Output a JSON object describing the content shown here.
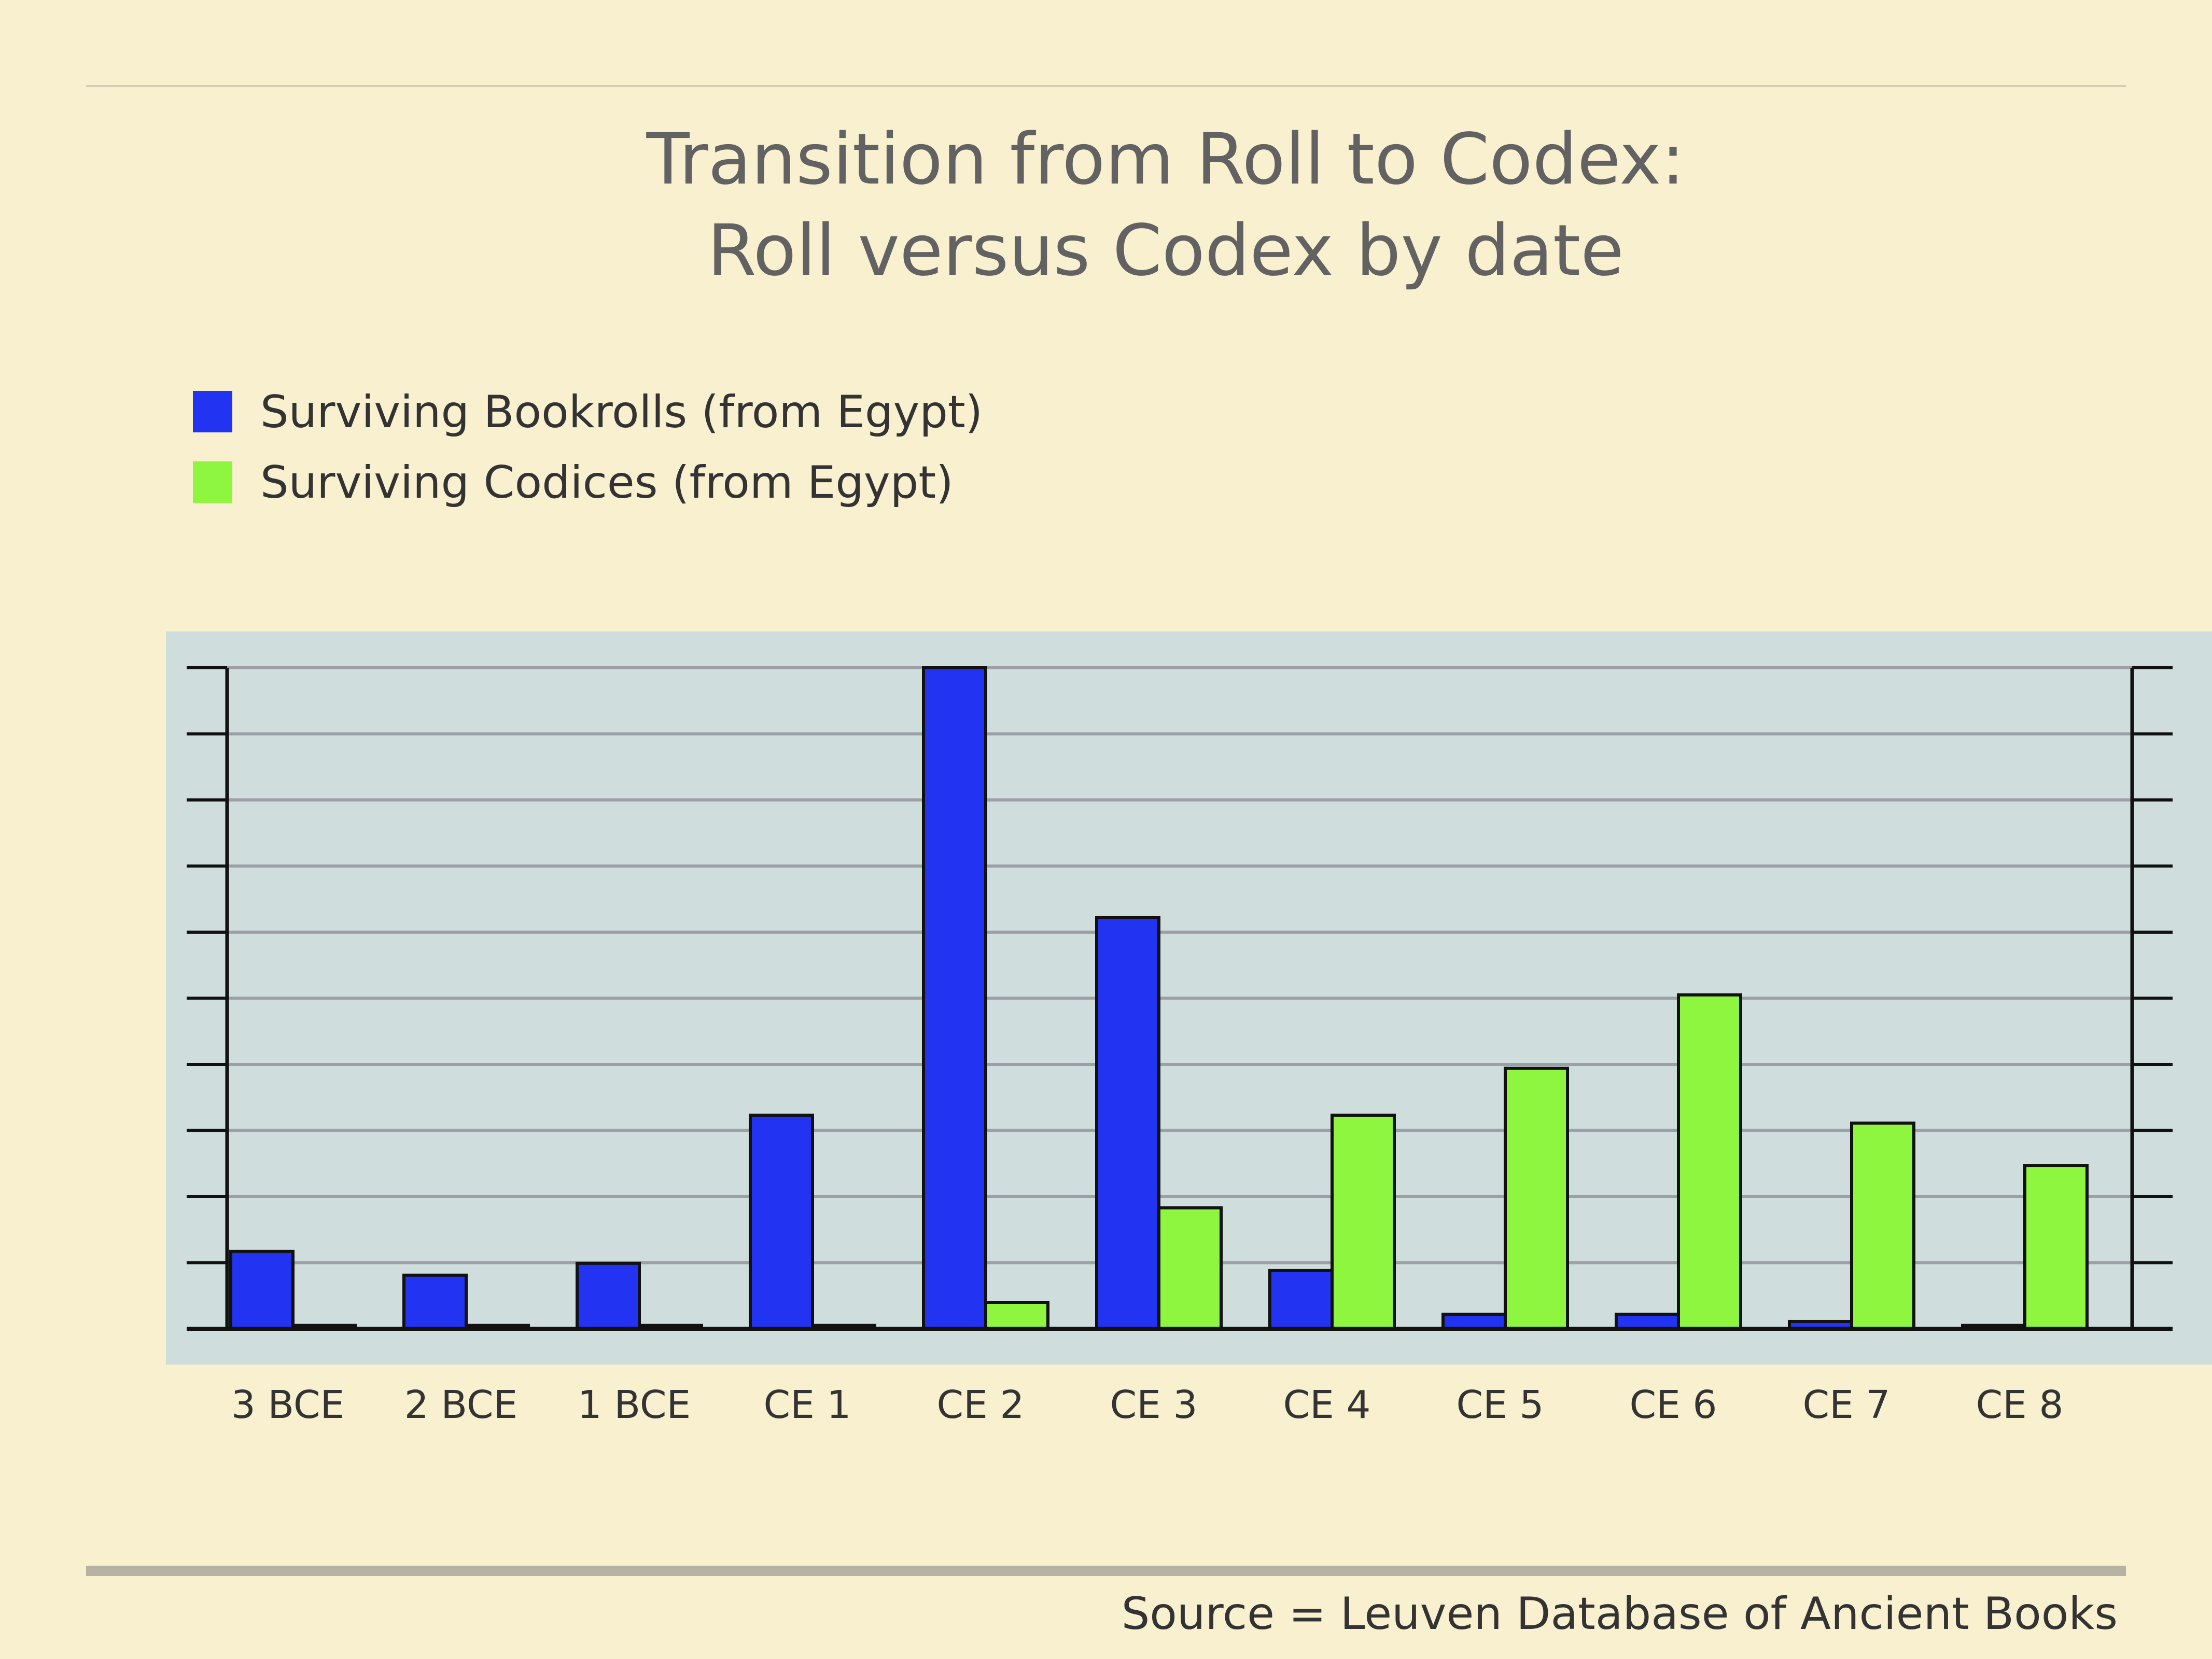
{
  "title": {
    "line1": "Transition from Roll to Codex:",
    "line2": "Roll versus Codex by date"
  },
  "legend": [
    {
      "label": "Surviving Bookrolls (from Egypt)",
      "color": "#2233f2"
    },
    {
      "label": "Surviving Codices (from Egypt)",
      "color": "#8ef63e"
    }
  ],
  "source": "Source = Leuven Database of Ancient Books",
  "chart_data": {
    "type": "bar",
    "title": "Transition from Roll to Codex: Roll versus Codex by date",
    "xlabel": "",
    "ylabel": "",
    "ylim": [
      0,
      10
    ],
    "ytick_count": 10,
    "grid": true,
    "legend_position": "top-left",
    "categories": [
      "3 BCE",
      "2 BCE",
      "1 BCE",
      "CE 1",
      "CE 2",
      "CE 3",
      "CE 4",
      "CE 5",
      "CE 6",
      "CE 7",
      "CE 8"
    ],
    "series": [
      {
        "name": "Surviving Bookrolls (from Egypt)",
        "color": "#2233f2",
        "values": [
          1.17,
          0.81,
          0.99,
          3.23,
          10.0,
          6.22,
          0.88,
          0.22,
          0.22,
          0.11,
          0.05
        ]
      },
      {
        "name": "Surviving Codices (from Egypt)",
        "color": "#8ef63e",
        "values": [
          0.05,
          0.05,
          0.05,
          0.05,
          0.4,
          1.83,
          3.23,
          3.94,
          5.05,
          3.11,
          2.47
        ]
      }
    ]
  }
}
